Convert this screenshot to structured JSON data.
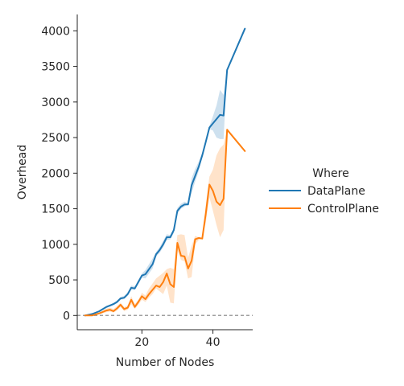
{
  "chart_data": {
    "type": "line",
    "title": "",
    "xlabel": "Number of Nodes",
    "ylabel": "Overhead",
    "xlim": [
      1.8,
      51.2
    ],
    "ylim": [
      -200,
      4230
    ],
    "xticks": [
      20,
      40
    ],
    "yticks": [
      0,
      500,
      1000,
      1500,
      2000,
      2500,
      3000,
      3500,
      4000
    ],
    "grid": false,
    "legend_position": "right",
    "legend_title": "Where",
    "reference_line": {
      "y": 0,
      "style": "dashed",
      "color": "#a0a0a0"
    },
    "series": [
      {
        "name": "DataPlane",
        "color": "#1f77b4",
        "x": [
          4,
          6,
          8,
          10,
          11,
          12,
          13,
          14,
          15,
          16,
          17,
          18,
          19,
          20,
          21,
          22,
          23,
          24,
          25,
          26,
          27,
          28,
          29,
          30,
          31,
          32,
          33,
          34,
          35,
          36,
          37,
          38,
          39,
          40,
          41,
          42,
          43,
          44,
          49
        ],
        "y": [
          0,
          20,
          60,
          120,
          140,
          160,
          190,
          240,
          250,
          300,
          390,
          380,
          470,
          560,
          580,
          650,
          720,
          860,
          920,
          1000,
          1100,
          1100,
          1200,
          1470,
          1530,
          1560,
          1560,
          1830,
          1960,
          2090,
          2250,
          2440,
          2640,
          2700,
          2760,
          2820,
          2810,
          3450,
          4030
        ],
        "ci_low": [
          0,
          15,
          50,
          105,
          125,
          145,
          170,
          220,
          230,
          280,
          360,
          360,
          440,
          530,
          520,
          590,
          660,
          830,
          880,
          960,
          1060,
          1070,
          1160,
          1430,
          1500,
          1530,
          1560,
          1720,
          1880,
          2030,
          2220,
          2420,
          2620,
          2600,
          2500,
          2480,
          2480,
          3450,
          4030
        ],
        "ci_high": [
          0,
          25,
          70,
          135,
          155,
          175,
          210,
          260,
          275,
          330,
          420,
          410,
          500,
          590,
          640,
          720,
          800,
          890,
          960,
          1050,
          1140,
          1130,
          1230,
          1510,
          1570,
          1600,
          1580,
          1930,
          2060,
          2160,
          2290,
          2480,
          2660,
          2800,
          2950,
          3170,
          3100,
          3450,
          4030
        ]
      },
      {
        "name": "ControlPlane",
        "color": "#ff7f0e",
        "x": [
          4,
          6,
          8,
          10,
          11,
          12,
          13,
          14,
          15,
          16,
          17,
          18,
          19,
          20,
          21,
          22,
          23,
          24,
          25,
          26,
          27,
          28,
          29,
          30,
          31,
          32,
          33,
          34,
          35,
          36,
          37,
          38,
          39,
          40,
          41,
          42,
          43,
          44,
          49
        ],
        "y": [
          0,
          0,
          30,
          70,
          80,
          60,
          100,
          150,
          90,
          110,
          220,
          120,
          190,
          270,
          230,
          300,
          360,
          420,
          400,
          470,
          590,
          440,
          400,
          1020,
          840,
          830,
          660,
          770,
          1070,
          1090,
          1080,
          1430,
          1840,
          1750,
          1600,
          1550,
          1640,
          2610,
          2310
        ],
        "ci_low": [
          0,
          0,
          15,
          45,
          55,
          40,
          70,
          120,
          60,
          80,
          160,
          90,
          150,
          220,
          190,
          250,
          300,
          380,
          340,
          300,
          420,
          180,
          170,
          920,
          780,
          760,
          520,
          540,
          1000,
          1060,
          1080,
          1300,
          1660,
          1470,
          1270,
          1100,
          1200,
          2610,
          2310
        ],
        "ci_high": [
          0,
          0,
          40,
          95,
          110,
          90,
          130,
          180,
          120,
          140,
          270,
          160,
          220,
          320,
          280,
          380,
          450,
          520,
          560,
          600,
          650,
          670,
          650,
          1130,
          1140,
          1130,
          810,
          980,
          1120,
          1100,
          1090,
          1560,
          1950,
          2050,
          2250,
          2350,
          2400,
          2610,
          2310
        ]
      }
    ]
  }
}
